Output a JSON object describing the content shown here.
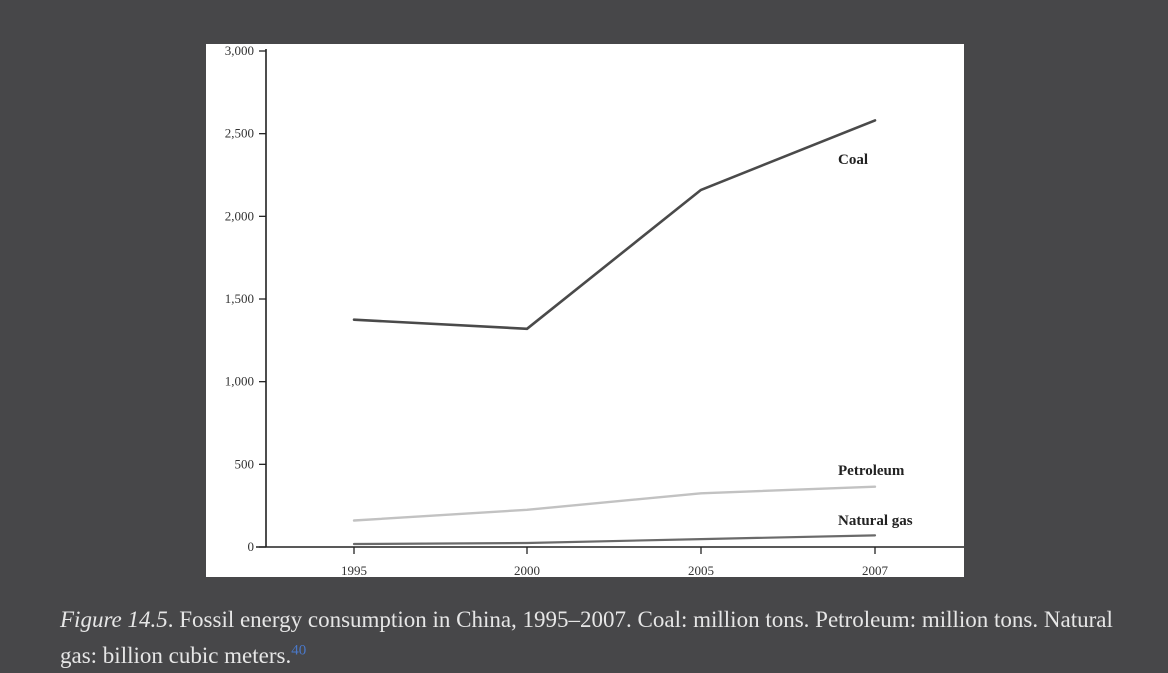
{
  "chart_data": {
    "type": "line",
    "x": [
      1995,
      2000,
      2005,
      2007
    ],
    "x_tick_labels": [
      "1995",
      "2000",
      "2005",
      "2007"
    ],
    "y_ticks": [
      0,
      500,
      1000,
      1500,
      2000,
      2500,
      3000
    ],
    "y_tick_labels": [
      "0",
      "500",
      "1,000",
      "1,500",
      "2,000",
      "2,500",
      "3,000"
    ],
    "ylim": [
      0,
      3000
    ],
    "grid": false,
    "title": "",
    "xlabel": "",
    "ylabel": "",
    "series": [
      {
        "name": "Coal",
        "values": [
          1375,
          1320,
          2160,
          2580
        ],
        "color": "#4a4a4a"
      },
      {
        "name": "Petroleum",
        "values": [
          160,
          225,
          325,
          365
        ],
        "color": "#c2c2c2"
      },
      {
        "name": "Natural gas",
        "values": [
          18,
          24,
          48,
          70
        ],
        "color": "#6a6a6a"
      }
    ]
  },
  "caption": {
    "figure_label": "Figure 14.5",
    "text": ". Fossil energy consumption in China, 1995–2007. Coal: million tons. Petroleum: million tons. Natural gas: billion cubic meters.",
    "footnote": "40"
  },
  "colors": {
    "background": "#474749",
    "panel": "#ffffff",
    "axis": "#222222",
    "footnote": "#4a78c9"
  }
}
